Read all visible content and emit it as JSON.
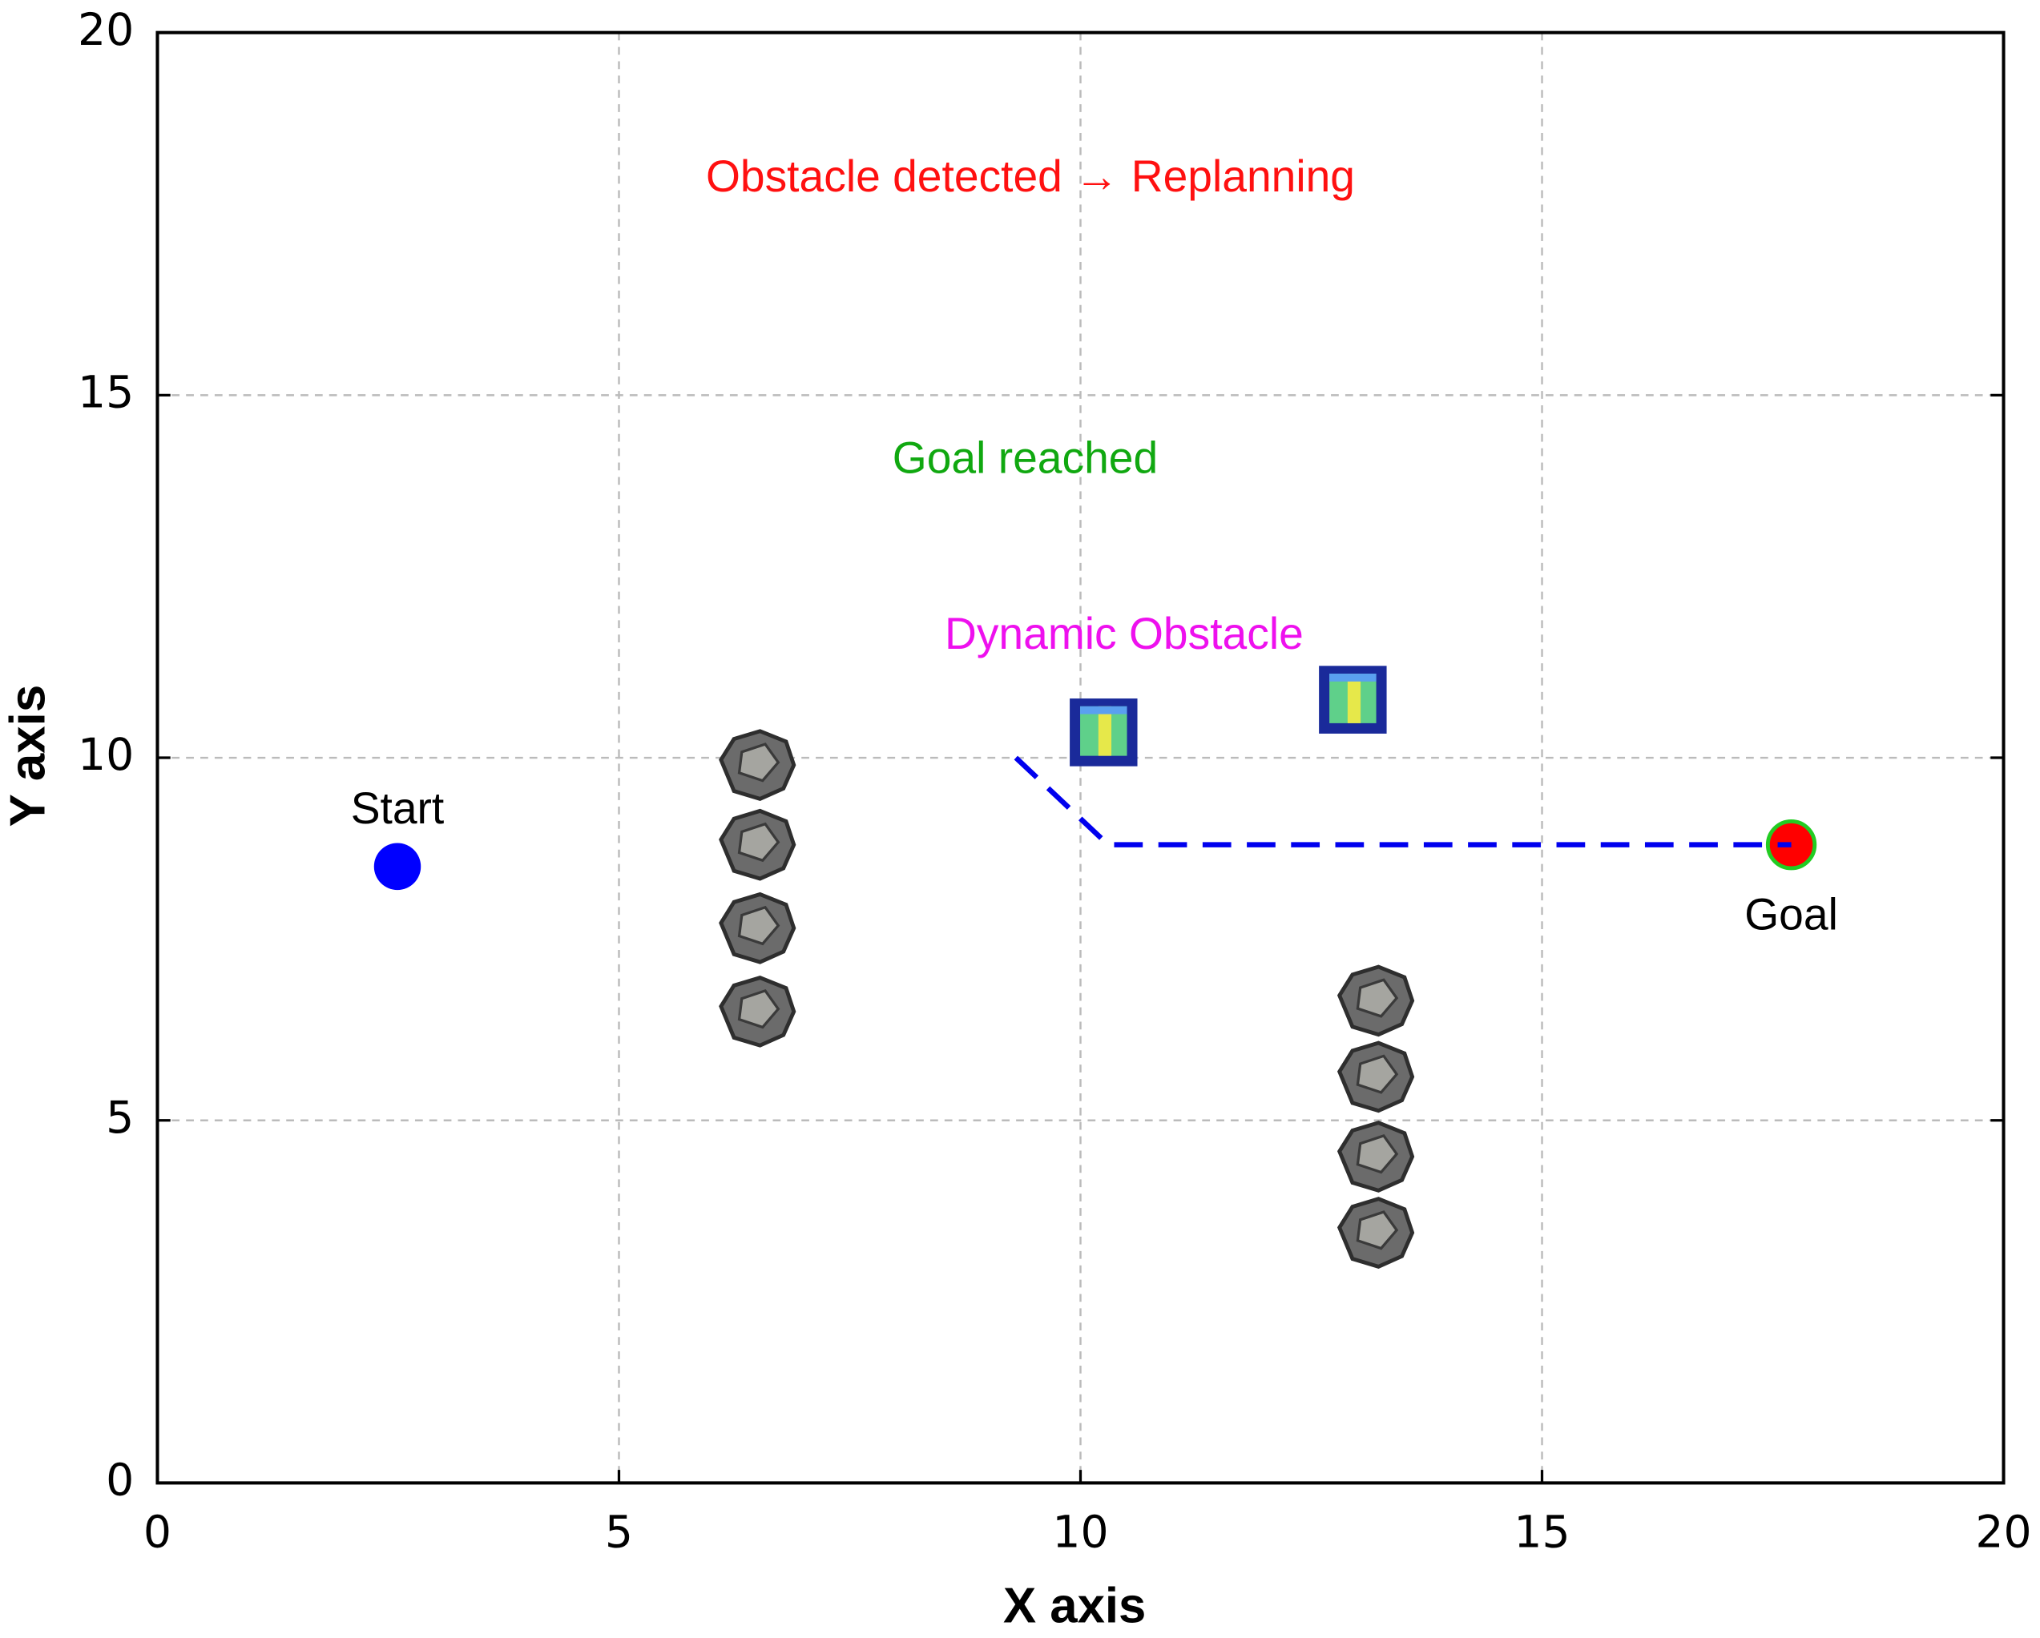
{
  "chart_data": {
    "type": "scatter",
    "xlabel": "X axis",
    "ylabel": "Y axis",
    "xlim": [
      0,
      20
    ],
    "ylim": [
      0,
      20
    ],
    "xticks": [
      0,
      5,
      10,
      15,
      20
    ],
    "yticks": [
      0,
      5,
      10,
      15,
      20
    ],
    "grid": true,
    "series": [
      {
        "name": "Start",
        "marker": "circle",
        "color": "#0000ff",
        "label_position": "above",
        "x": [
          2.6
        ],
        "values": [
          8.5
        ]
      },
      {
        "name": "Goal",
        "marker": "circle",
        "color": "#ff0000",
        "edgecolor": "#22cc22",
        "label_position": "below",
        "x": [
          17.7
        ],
        "values": [
          8.8
        ]
      },
      {
        "marker": "line",
        "color": "#0000ee",
        "x": [
          9.3,
          10.3,
          17.7
        ],
        "values": [
          10.0,
          8.8,
          8.8
        ]
      },
      {
        "marker": "rock",
        "color": "#6b6b6b",
        "x": [
          6.5,
          6.5,
          6.5,
          6.5,
          13.2,
          13.2,
          13.2,
          13.2
        ],
        "values": [
          9.9,
          8.8,
          7.65,
          6.5,
          6.65,
          5.6,
          4.5,
          3.45
        ]
      },
      {
        "marker": "box",
        "color": "#1a2a9a",
        "x": [
          10.25,
          12.95
        ],
        "values": [
          10.35,
          10.8
        ]
      }
    ],
    "annotations": [
      {
        "text": "Obstacle detected → Replanning",
        "color": "#ff1010"
      },
      {
        "text": "Goal reached",
        "color": "#10a810"
      },
      {
        "text": "Dynamic Obstacle",
        "color": "#ee10ee"
      }
    ]
  }
}
